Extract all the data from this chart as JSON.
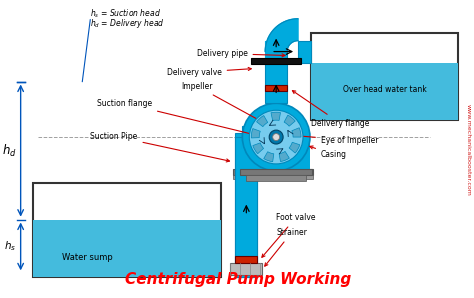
{
  "title": "Centrifugal Pump Working",
  "title_color": "#ff0000",
  "title_fontsize": 11,
  "bg_color": "#ffffff",
  "pipe_color": "#00aadd",
  "pipe_color_dark": "#0088bb",
  "water_color": "#44bbdd",
  "pump_inner_color": "#77ccee",
  "impeller_color": "#55aacc",
  "base_color": "#777777",
  "valve_color": "#cc2200",
  "gate_valve_color": "#111111",
  "label_color": "#000000",
  "annotation_color": "#cc0000",
  "dim_arrow_color": "#0055bb",
  "website_color": "#cc0000",
  "labels": {
    "hs_eq": "$h_s$ = Suction head",
    "hd_eq": "$h_d$ = Delivery head",
    "hd": "$h_d$",
    "hs": "$h_s$",
    "delivery_pipe": "Delivery pipe",
    "delivery_valve": "Delivery valve",
    "impeller": "Impeller",
    "suction_flange": "Suction flange",
    "delivery_flange": "Delivery flange",
    "suction_pipe": "Suction Pipe",
    "eye_of_impeller": "Eye of Impeller",
    "casing": "Casing",
    "foot_valve": "Foot valve",
    "strainer": "Strainer",
    "water_sump": "Water sump",
    "overhead_tank": "Over head water tank",
    "website": "www.mechanicalbooster.com"
  }
}
